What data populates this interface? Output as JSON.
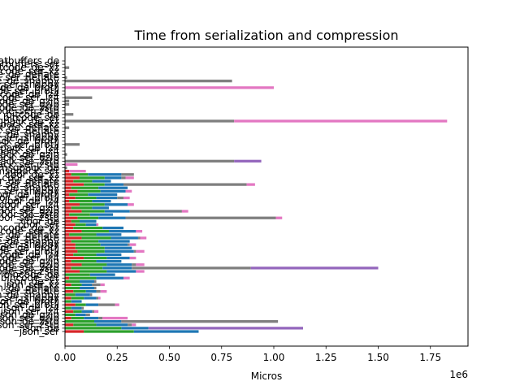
{
  "chart_data": {
    "type": "bar",
    "orientation": "horizontal",
    "stacked": true,
    "title": "Time from serialization and compression",
    "xlabel": "Micros",
    "ylabel": "",
    "x_scale_label": "1e6",
    "xlim": [
      0,
      1.93
    ],
    "x_ticks": [
      "0.00",
      "0.25",
      "0.50",
      "0.75",
      "1.00",
      "1.25",
      "1.50",
      "1.75"
    ],
    "x_tick_values": [
      0,
      0.25,
      0.5,
      0.75,
      1.0,
      1.25,
      1.5,
      1.75
    ],
    "categories": [
      "json_ser",
      "json_de",
      "json_ser_zstd",
      "json_de_zstd",
      "json_ser_gzip",
      "json_de_gzip",
      "json_ser_lz4",
      "json_de_lz4",
      "json_ser_brotli",
      "json_de_brotli",
      "json_ser_snappy",
      "json_de_snappy",
      "json_ser_deflate",
      "json_de_deflate",
      "json_ser_xz",
      "json_de_xz",
      "bincode_ser",
      "bincode_de",
      "bincode_ser_zstd",
      "bincode_de_zstd",
      "bincode_ser_gzip",
      "bincode_de_gzip",
      "bincode_ser_lz4",
      "bincode_de_lz4",
      "bincode_ser_brotli",
      "bincode_de_brotli",
      "bincode_ser_snappy",
      "bincode_de_snappy",
      "bincode_ser_deflate",
      "bincode_de_deflate",
      "bincode_ser_xz",
      "bincode_de_xz",
      "cbor_ser",
      "cbor_de",
      "cbor_ser_zstd",
      "cbor_de_zstd",
      "cbor_ser_gzip",
      "cbor_de_gzip",
      "cbor_ser_lz4",
      "cbor_de_lz4",
      "cbor_ser_brotli",
      "cbor_de_brotli",
      "cbor_ser_snappy",
      "cbor_de_snappy",
      "cbor_ser_deflate",
      "cbor_de_deflate",
      "cbor_ser_xz",
      "cbor_de_xz",
      "msgpack_ser",
      "msgpack_de",
      "msgpack_ser_zstd",
      "msgpack_de_zstd",
      "msgpack_ser_gzip",
      "msgpack_de_gzip",
      "msgpack_ser_lz4",
      "msgpack_de_lz4",
      "msgpack_ser_brotli",
      "msgpack_de_brotli",
      "msgpack_ser_snappy",
      "msgpack_de_snappy",
      "msgpack_ser_deflate",
      "msgpack_de_deflate",
      "msgpack_ser_xz",
      "msgpack_de_xz",
      "bitcode_ser",
      "bitcode_de",
      "bitcode_ser_zstd",
      "bitcode_de_zstd",
      "bitcode_ser_gzip",
      "bitcode_de_gzip",
      "bitcode_ser_lz4",
      "bitcode_de_lz4",
      "bitcode_ser_brotli",
      "bitcode_de_brotli",
      "bitcode_ser_snappy",
      "bitcode_de_snappy",
      "bitcode_ser_deflate",
      "bitcode_de_deflate",
      "bitcode_ser_xz",
      "bitcode_de_xz",
      "flatbuffers_ser",
      "flatbuffers_de"
    ],
    "series": [
      {
        "color": "#d62728",
        "values": [
          0.09,
          0.0,
          0.04,
          0.0,
          0.03,
          0.0,
          0.04,
          0.0,
          0.05,
          0.0,
          0.03,
          0.0,
          0.04,
          0.0,
          0.03,
          0.0,
          0.02,
          0.0,
          0.07,
          0.03,
          0.08,
          0.03,
          0.09,
          0.04,
          0.06,
          0.05,
          0.05,
          0.03,
          0.08,
          0.02,
          0.08,
          0.04,
          0.05,
          0.03,
          0.06,
          0.02,
          0.08,
          0.03,
          0.07,
          0.02,
          0.05,
          0.02,
          0.06,
          0.03,
          0.09,
          0.04,
          0.07,
          0.03,
          0.02,
          0.0,
          0.0,
          0.0,
          0.0,
          0.0,
          0.0,
          0.0,
          0.0,
          0.0,
          0.0,
          0.0,
          0.0,
          0.0,
          0.0,
          0.0,
          0.0,
          0.0,
          0.0,
          0.0,
          0.0,
          0.0,
          0.0,
          0.0,
          0.0,
          0.0,
          0.0,
          0.0,
          0.0,
          0.0,
          0.0,
          0.0,
          0.0,
          0.0
        ]
      },
      {
        "color": "#2ca02c",
        "values": [
          0.24,
          0.27,
          0.11,
          0.14,
          0.06,
          0.05,
          0.04,
          0.03,
          0.05,
          0.03,
          0.06,
          0.05,
          0.06,
          0.07,
          0.05,
          0.07,
          0.13,
          0.12,
          0.13,
          0.15,
          0.12,
          0.12,
          0.11,
          0.11,
          0.13,
          0.14,
          0.12,
          0.13,
          0.14,
          0.13,
          0.13,
          0.14,
          0.05,
          0.04,
          0.1,
          0.1,
          0.11,
          0.1,
          0.12,
          0.11,
          0.1,
          0.09,
          0.11,
          0.13,
          0.1,
          0.09,
          0.12,
          0.08,
          0.0,
          0.0,
          0.0,
          0.0,
          0.0,
          0.0,
          0.0,
          0.0,
          0.0,
          0.0,
          0.0,
          0.0,
          0.0,
          0.0,
          0.0,
          0.0,
          0.0,
          0.0,
          0.0,
          0.0,
          0.0,
          0.0,
          0.0,
          0.0,
          0.0,
          0.0,
          0.0,
          0.0,
          0.0,
          0.0,
          0.0,
          0.0,
          0.0,
          0.0
        ]
      },
      {
        "color": "#1f77b4",
        "values": [
          0.31,
          0.13,
          0.15,
          0.13,
          0.07,
          0.05,
          0.05,
          0.05,
          0.06,
          0.05,
          0.06,
          0.07,
          0.05,
          0.07,
          0.05,
          0.07,
          0.13,
          0.12,
          0.14,
          0.14,
          0.12,
          0.12,
          0.11,
          0.12,
          0.14,
          0.13,
          0.13,
          0.15,
          0.13,
          0.12,
          0.13,
          0.1,
          0.05,
          0.08,
          0.13,
          0.11,
          0.12,
          0.08,
          0.11,
          0.09,
          0.1,
          0.14,
          0.12,
          0.14,
          0.09,
          0.09,
          0.08,
          0.16,
          0.0,
          0.0,
          0.0,
          0.0,
          0.0,
          0.0,
          0.0,
          0.0,
          0.0,
          0.0,
          0.0,
          0.0,
          0.0,
          0.0,
          0.0,
          0.0,
          0.0,
          0.0,
          0.0,
          0.0,
          0.0,
          0.0,
          0.0,
          0.0,
          0.0,
          0.0,
          0.0,
          0.0,
          0.0,
          0.0,
          0.0,
          0.0,
          0.0,
          0.0
        ]
      },
      {
        "color": "#7f7f7f",
        "values": [
          0.0,
          0.0,
          0.02,
          0.75,
          0.02,
          0.02,
          0.01,
          0.01,
          0.08,
          0.0,
          0.01,
          0.01,
          0.02,
          0.01,
          0.04,
          0.01,
          0.0,
          0.0,
          0.0,
          0.57,
          0.02,
          0.0,
          0.0,
          0.0,
          0.01,
          0.0,
          0.01,
          0.0,
          0.01,
          0.0,
          0.0,
          0.0,
          0.0,
          0.0,
          0.72,
          0.0,
          0.25,
          0.0,
          0.0,
          0.0,
          0.03,
          0.0,
          0.0,
          0.0,
          0.59,
          0.0,
          0.02,
          0.06,
          0.0,
          0.01,
          0.0,
          0.81,
          0.0,
          0.01,
          0.0,
          0.0,
          0.07,
          0.0,
          0.0,
          0.0,
          0.0,
          0.02,
          0.0,
          0.81,
          0.0,
          0.04,
          0.0,
          0.0,
          0.02,
          0.02,
          0.13,
          0.0,
          0.0,
          0.0,
          0.0,
          0.8,
          0.01,
          0.0,
          0.0,
          0.02,
          0.0,
          0.0
        ]
      },
      {
        "color": "#e377c2",
        "values": [
          0.0,
          0.0,
          0.02,
          0.0,
          0.12,
          0.0,
          0.02,
          0.0,
          0.02,
          0.0,
          0.01,
          0.0,
          0.03,
          0.0,
          0.02,
          0.0,
          0.03,
          0.0,
          0.04,
          0.0,
          0.04,
          0.0,
          0.03,
          0.0,
          0.04,
          0.0,
          0.03,
          0.0,
          0.03,
          0.0,
          0.03,
          0.0,
          0.01,
          0.0,
          0.03,
          0.0,
          0.03,
          0.0,
          0.03,
          0.0,
          0.03,
          0.0,
          0.03,
          0.0,
          0.04,
          0.0,
          0.04,
          0.0,
          0.08,
          0.0,
          0.06,
          0.0,
          0.0,
          0.0,
          0.0,
          0.0,
          0.0,
          0.0,
          0.0,
          0.0,
          0.0,
          0.0,
          0.0,
          1.02,
          0.0,
          0.0,
          0.0,
          0.0,
          0.0,
          0.0,
          0.0,
          0.0,
          0.0,
          1.0,
          0.0,
          0.0,
          0.0,
          0.0,
          0.0,
          0.0,
          0.0,
          0.0
        ]
      },
      {
        "color": "#9467bd",
        "values": [
          0.0,
          0.74,
          0.0,
          0.0,
          0.0,
          0.0,
          0.0,
          0.0,
          0.0,
          0.0,
          0.0,
          0.0,
          0.0,
          0.0,
          0.0,
          0.0,
          0.0,
          0.0,
          0.0,
          0.61,
          0.0,
          0.0,
          0.0,
          0.0,
          0.0,
          0.0,
          0.0,
          0.0,
          0.0,
          0.0,
          0.0,
          0.0,
          0.0,
          0.0,
          0.0,
          0.0,
          0.0,
          0.0,
          0.0,
          0.0,
          0.0,
          0.0,
          0.0,
          0.0,
          0.0,
          0.0,
          0.0,
          0.0,
          0.0,
          0.0,
          0.0,
          0.13,
          0.0,
          0.0,
          0.0,
          0.0,
          0.0,
          0.0,
          0.0,
          0.0,
          0.0,
          0.0,
          0.0,
          0.0,
          0.0,
          0.0,
          0.0,
          0.0,
          0.0,
          0.0,
          0.0,
          0.0,
          0.0,
          0.0,
          0.0,
          0.0,
          0.0,
          0.0,
          0.0,
          0.0,
          0.0,
          0.0
        ]
      }
    ]
  }
}
